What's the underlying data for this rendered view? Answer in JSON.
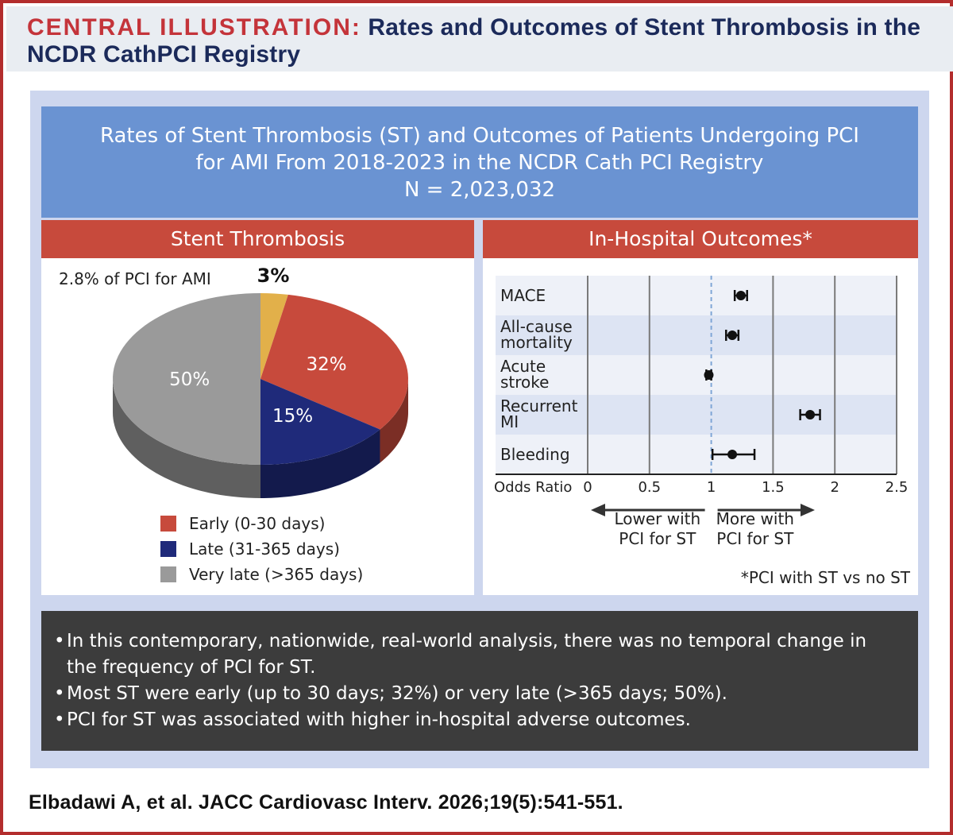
{
  "header": {
    "kicker": "CENTRAL ILLUSTRATION:",
    "title_line1": "Rates and Outcomes of Stent Thrombosis in the",
    "title_line2": "NCDR CathPCI Registry"
  },
  "banner": {
    "line1": "Rates of Stent Thrombosis (ST) and Outcomes of Patients Undergoing PCI",
    "line2": "for AMI From 2018-2023 in the NCDR Cath PCI Registry",
    "line3": "N = 2,023,032"
  },
  "stent_panel": {
    "title": "Stent Thrombosis",
    "subnote": "2.8% of PCI for AMI",
    "legend": [
      {
        "label": "Early (0-30 days)",
        "color": "#c74a3c"
      },
      {
        "label": "Late (31-365 days)",
        "color": "#1f2a7a"
      },
      {
        "label": "Very late (>365 days)",
        "color": "#9a9a9a"
      }
    ]
  },
  "outcomes_panel": {
    "title": "In-Hospital Outcomes*",
    "axis_title": "Odds Ratio",
    "arrow_lower": [
      "Lower with",
      "PCI for ST"
    ],
    "arrow_higher": [
      "More with",
      "PCI for ST"
    ],
    "footnote": "*PCI with ST vs no ST"
  },
  "chart_data": [
    {
      "type": "pie",
      "slices": [
        {
          "label": "3%",
          "value": 3,
          "color": "#e2b04a"
        },
        {
          "label": "32%",
          "value": 32,
          "color": "#c74a3c",
          "category": "Early (0-30 days)"
        },
        {
          "label": "15%",
          "value": 15,
          "color": "#1f2a7a",
          "category": "Late (31-365 days)"
        },
        {
          "label": "50%",
          "value": 50,
          "color": "#9a9a9a",
          "category": "Very late (>365 days)"
        }
      ]
    },
    {
      "type": "scatter",
      "xlabel": "Odds Ratio",
      "xlim": [
        0,
        2.5
      ],
      "xticks": [
        "0",
        "0.5",
        "1",
        "1.5",
        "2",
        "2.5"
      ],
      "reference_line": 1,
      "rows": [
        {
          "label": [
            "MACE"
          ],
          "or": 1.24,
          "lo": 1.19,
          "hi": 1.29
        },
        {
          "label": [
            "All-cause",
            "mortality"
          ],
          "or": 1.17,
          "lo": 1.12,
          "hi": 1.22
        },
        {
          "label": [
            "Acute",
            "stroke"
          ],
          "or": 0.98,
          "lo": 0.96,
          "hi": 1.0
        },
        {
          "label": [
            "Recurrent",
            "MI"
          ],
          "or": 1.8,
          "lo": 1.72,
          "hi": 1.88
        },
        {
          "label": [
            "Bleeding"
          ],
          "or": 1.17,
          "lo": 1.01,
          "hi": 1.35
        }
      ]
    }
  ],
  "bullets": [
    {
      "text": "In this contemporary, nationwide, real-world analysis, there was no temporal change in the frequency of PCI for ST."
    },
    {
      "text": "Most ST were early (up to 30 days; 32%) or very late (>365 days; 50%)."
    },
    {
      "text": "PCI for ST was associated with higher in-hospital adverse outcomes."
    }
  ],
  "citation": "Elbadawi A, et al. JACC Cardiovasc Interv. 2026;19(5):541-551."
}
